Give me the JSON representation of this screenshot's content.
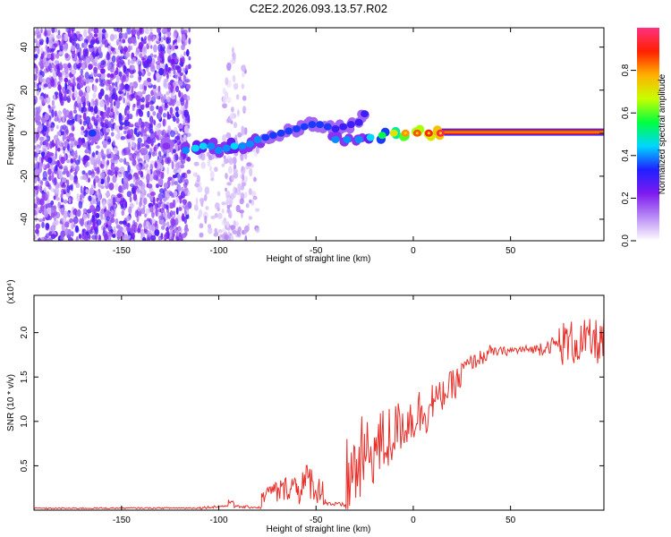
{
  "title": "C2E2.2026.093.13.57.R02",
  "colors": {
    "snr_line": "#e8302a",
    "axis": "#000000",
    "points_dim": "#d8c6f4",
    "points_mid": "#a77cf0",
    "points_strong": "#6a1fe0",
    "track_edge": "#1530ff",
    "track_core": "#20e0a0",
    "track_hot": "#ff3030",
    "track_center": "#ffd000"
  },
  "chart_data": [
    {
      "type": "scatter",
      "name": "spectrogram",
      "title": "C2E2.2026.093.13.57.R02",
      "xlabel": "Height of straight line (km)",
      "ylabel": "Frequency (Hz)",
      "xlim": [
        -195,
        98
      ],
      "ylim": [
        -50,
        49
      ],
      "x_ticks": [
        -150,
        -100,
        -50,
        0,
        50
      ],
      "x_tick_labels": [
        "-150",
        "-100",
        "-50",
        "0",
        "50"
      ],
      "y_ticks": [
        -40,
        -20,
        0,
        20,
        40
      ],
      "y_tick_labels": [
        "-40",
        "-20",
        "0",
        "20",
        "40"
      ],
      "grid": false,
      "noise_regions": [
        {
          "x": [
            -195,
            -115
          ],
          "y": [
            -50,
            49
          ],
          "amplitude": [
            0.05,
            0.3
          ]
        },
        {
          "x": [
            -112,
            -80
          ],
          "y": [
            -50,
            -5
          ],
          "amplitude": [
            0.03,
            0.12
          ]
        },
        {
          "x": [
            -98,
            -85
          ],
          "y": [
            -50,
            40
          ],
          "amplitude": [
            0.03,
            0.12
          ]
        }
      ],
      "track_points": [
        {
          "x": -165,
          "y": 0,
          "amp": 0.35
        },
        {
          "x": -127,
          "y": -6,
          "amp": 0.2
        },
        {
          "x": -117,
          "y": -8,
          "amp": 0.4
        },
        {
          "x": -112,
          "y": -7,
          "amp": 0.45
        },
        {
          "x": -108,
          "y": -6,
          "amp": 0.45
        },
        {
          "x": -104,
          "y": -6,
          "amp": 0.4
        },
        {
          "x": -100,
          "y": -8,
          "amp": 0.4
        },
        {
          "x": -96,
          "y": -7,
          "amp": 0.4
        },
        {
          "x": -92,
          "y": -6,
          "amp": 0.45
        },
        {
          "x": -88,
          "y": -6,
          "amp": 0.4
        },
        {
          "x": -84,
          "y": -5,
          "amp": 0.4
        },
        {
          "x": -80,
          "y": -3,
          "amp": 0.4
        },
        {
          "x": -76,
          "y": -2,
          "amp": 0.35
        },
        {
          "x": -72,
          "y": -1,
          "amp": 0.35
        },
        {
          "x": -68,
          "y": 0,
          "amp": 0.35
        },
        {
          "x": -64,
          "y": 1,
          "amp": 0.35
        },
        {
          "x": -60,
          "y": 2,
          "amp": 0.35
        },
        {
          "x": -56,
          "y": 3,
          "amp": 0.35
        },
        {
          "x": -52,
          "y": 4,
          "amp": 0.35
        },
        {
          "x": -48,
          "y": 4,
          "amp": 0.35
        },
        {
          "x": -44,
          "y": 3,
          "amp": 0.35
        },
        {
          "x": -40,
          "y": 2,
          "amp": 0.3
        },
        {
          "x": -36,
          "y": 3,
          "amp": 0.3
        },
        {
          "x": -32,
          "y": 4,
          "amp": 0.3
        },
        {
          "x": -28,
          "y": 5,
          "amp": 0.3
        },
        {
          "x": -25,
          "y": 9,
          "amp": 0.3
        },
        {
          "x": -40,
          "y": -3,
          "amp": 0.4
        },
        {
          "x": -34,
          "y": -3,
          "amp": 0.4
        },
        {
          "x": -28,
          "y": -3,
          "amp": 0.4
        },
        {
          "x": -22,
          "y": -2,
          "amp": 0.45
        },
        {
          "x": -16,
          "y": -1,
          "amp": 0.55
        },
        {
          "x": -10,
          "y": 0,
          "amp": 0.7
        },
        {
          "x": -4,
          "y": 0,
          "amp": 0.8
        },
        {
          "x": 2,
          "y": 0,
          "amp": 0.85
        },
        {
          "x": 8,
          "y": 0,
          "amp": 0.9
        },
        {
          "x": 14,
          "y": 0,
          "amp": 0.95
        }
      ],
      "steady_line": {
        "x_start": 14,
        "x_end": 98,
        "y": 0.5,
        "amp": 1.0
      }
    },
    {
      "type": "line",
      "name": "snr",
      "xlabel": "Height of straight line (km)",
      "ylabel": "SNR (10 * v/v)",
      "y_scale_note": "(x10⁴)",
      "xlim": [
        -195,
        98
      ],
      "ylim": [
        0,
        24200
      ],
      "x_ticks": [
        -150,
        -100,
        -50,
        0,
        50
      ],
      "x_tick_labels": [
        "-150",
        "-100",
        "-50",
        "0",
        "50"
      ],
      "y_ticks": [
        5000,
        10000,
        15000,
        20000
      ],
      "y_tick_labels": [
        "0.5",
        "1.0",
        "1.5",
        "2.0"
      ],
      "grid": false,
      "baseline_segments": [
        {
          "x": [
            -195,
            -110
          ],
          "mean": [
            200,
            250
          ],
          "noise": 80
        },
        {
          "x": [
            -110,
            -95
          ],
          "mean": [
            250,
            500
          ],
          "noise": 150
        },
        {
          "x": [
            -95,
            -92
          ],
          "mean": [
            900,
            1100
          ],
          "noise": 300
        },
        {
          "x": [
            -92,
            -78
          ],
          "mean": [
            400,
            300
          ],
          "noise": 150
        },
        {
          "x": [
            -78,
            -70
          ],
          "mean": [
            1500,
            2500
          ],
          "noise": 900
        },
        {
          "x": [
            -70,
            -60
          ],
          "mean": [
            2000,
            3000
          ],
          "noise": 1400
        },
        {
          "x": [
            -60,
            -52
          ],
          "mean": [
            2500,
            3500
          ],
          "noise": 2200
        },
        {
          "x": [
            -52,
            -45
          ],
          "mean": [
            2500,
            2000
          ],
          "noise": 1600
        },
        {
          "x": [
            -45,
            -35
          ],
          "mean": [
            800,
            500
          ],
          "noise": 300
        },
        {
          "x": [
            -35,
            -25
          ],
          "mean": [
            3000,
            6000
          ],
          "noise": 5000
        },
        {
          "x": [
            -25,
            -10
          ],
          "mean": [
            6000,
            8500
          ],
          "noise": 4000
        },
        {
          "x": [
            -10,
            10
          ],
          "mean": [
            9000,
            12000
          ],
          "noise": 3000
        },
        {
          "x": [
            10,
            25
          ],
          "mean": [
            12000,
            15000
          ],
          "noise": 1800
        },
        {
          "x": [
            25,
            40
          ],
          "mean": [
            16000,
            17800
          ],
          "noise": 900
        },
        {
          "x": [
            40,
            65
          ],
          "mean": [
            17800,
            18200
          ],
          "noise": 500
        },
        {
          "x": [
            65,
            75
          ],
          "mean": [
            18300,
            18800
          ],
          "noise": 900
        },
        {
          "x": [
            75,
            98
          ],
          "mean": [
            18800,
            19000
          ],
          "noise": 2600
        }
      ]
    }
  ],
  "colorbar": {
    "label": "Normalized spectral amplitude",
    "range": [
      0,
      1
    ],
    "ticks": [
      0.0,
      0.2,
      0.4,
      0.6,
      0.8
    ],
    "tick_labels": [
      "0.0",
      "0.2",
      "0.4",
      "0.6",
      "0.8"
    ],
    "stops": [
      "#ffffff",
      "#b98cf5",
      "#7d1bf0",
      "#1f20ff",
      "#00d6ff",
      "#00ff40",
      "#c8ff00",
      "#ffb000",
      "#ff2000",
      "#ff3080"
    ]
  }
}
